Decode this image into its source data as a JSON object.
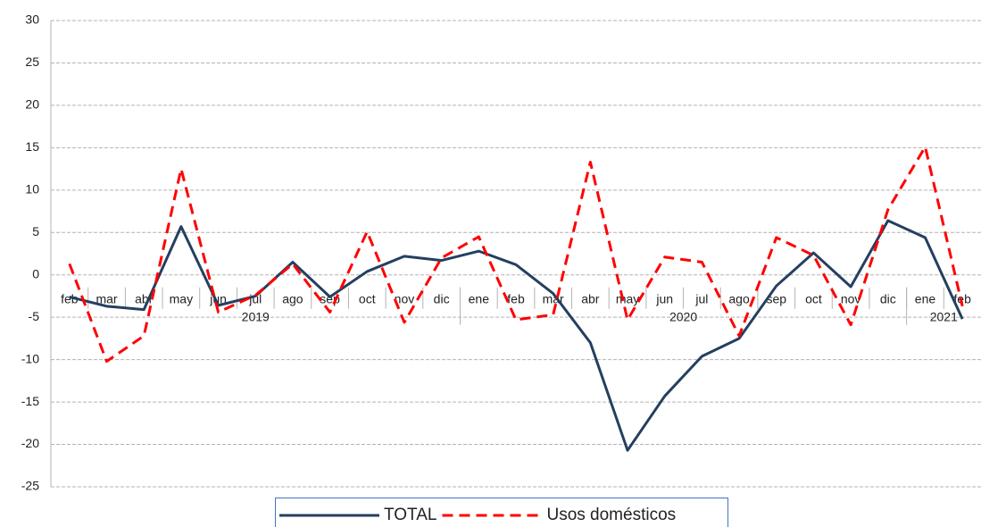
{
  "chart_data": {
    "type": "line",
    "categories": [
      "feb",
      "mar",
      "abr",
      "may",
      "jun",
      "jul",
      "ago",
      "sep",
      "oct",
      "nov",
      "dic",
      "ene",
      "feb",
      "mar",
      "abr",
      "may",
      "jun",
      "jul",
      "ago",
      "sep",
      "oct",
      "nov",
      "dic",
      "ene",
      "feb"
    ],
    "year_groups": [
      {
        "label": "2019",
        "start": 0,
        "end": 10
      },
      {
        "label": "2020",
        "start": 11,
        "end": 22
      },
      {
        "label": "2021",
        "start": 23,
        "end": 24
      }
    ],
    "series": [
      {
        "name": "TOTAL",
        "color": "#243f60",
        "dashed": false,
        "values": [
          -2.6,
          -3.7,
          -4.1,
          5.7,
          -3.6,
          -2.5,
          1.5,
          -2.6,
          0.4,
          2.2,
          1.7,
          2.8,
          1.2,
          -2.2,
          -8.0,
          -20.7,
          -14.3,
          -9.6,
          -7.5,
          -1.3,
          2.6,
          -1.4,
          6.4,
          4.4,
          -5.2
        ]
      },
      {
        "name": "Usos domésticos",
        "color": "#ff0000",
        "dashed": true,
        "values": [
          1.3,
          -10.2,
          -7.2,
          12.5,
          -4.4,
          -2.4,
          1.3,
          -4.4,
          5.1,
          -5.6,
          2.0,
          4.5,
          -5.3,
          -4.7,
          13.3,
          -5.3,
          2.1,
          1.5,
          -7.2,
          4.4,
          2.3,
          -5.9,
          7.7,
          15.1,
          -3.7
        ]
      }
    ],
    "ylim": [
      -25,
      30
    ],
    "yticks": [
      -25,
      -20,
      -15,
      -10,
      -5,
      0,
      5,
      10,
      15,
      20,
      25,
      30
    ],
    "grid": true,
    "legend": "bottom"
  }
}
